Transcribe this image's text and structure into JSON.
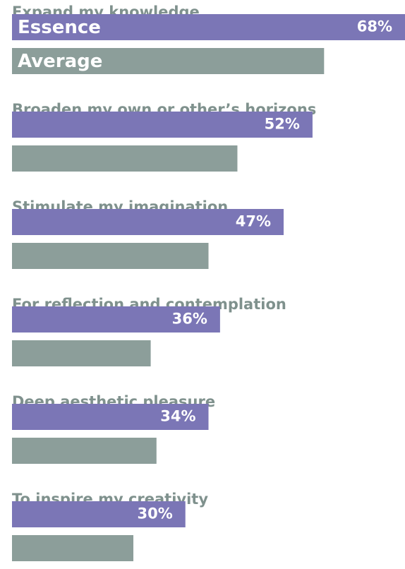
{
  "chart_data": {
    "type": "bar",
    "orientation": "horizontal",
    "categories": [
      "Expand my knowledge",
      "Broaden my own or other’s horizons",
      "Stimulate my imagination",
      "For reflection and contemplation",
      "Deep aesthetic pleasure",
      "To inspire my creativity"
    ],
    "series": [
      {
        "name": "Essence",
        "color": "#7b76b6",
        "values": [
          68,
          52,
          47,
          36,
          34,
          30
        ],
        "value_labels": [
          "68%",
          "52%",
          "47%",
          "36%",
          "34%",
          "30%"
        ]
      },
      {
        "name": "Average",
        "color": "#8c9e9a",
        "values": [
          54,
          39,
          34,
          24,
          25,
          21
        ]
      }
    ]
  }
}
